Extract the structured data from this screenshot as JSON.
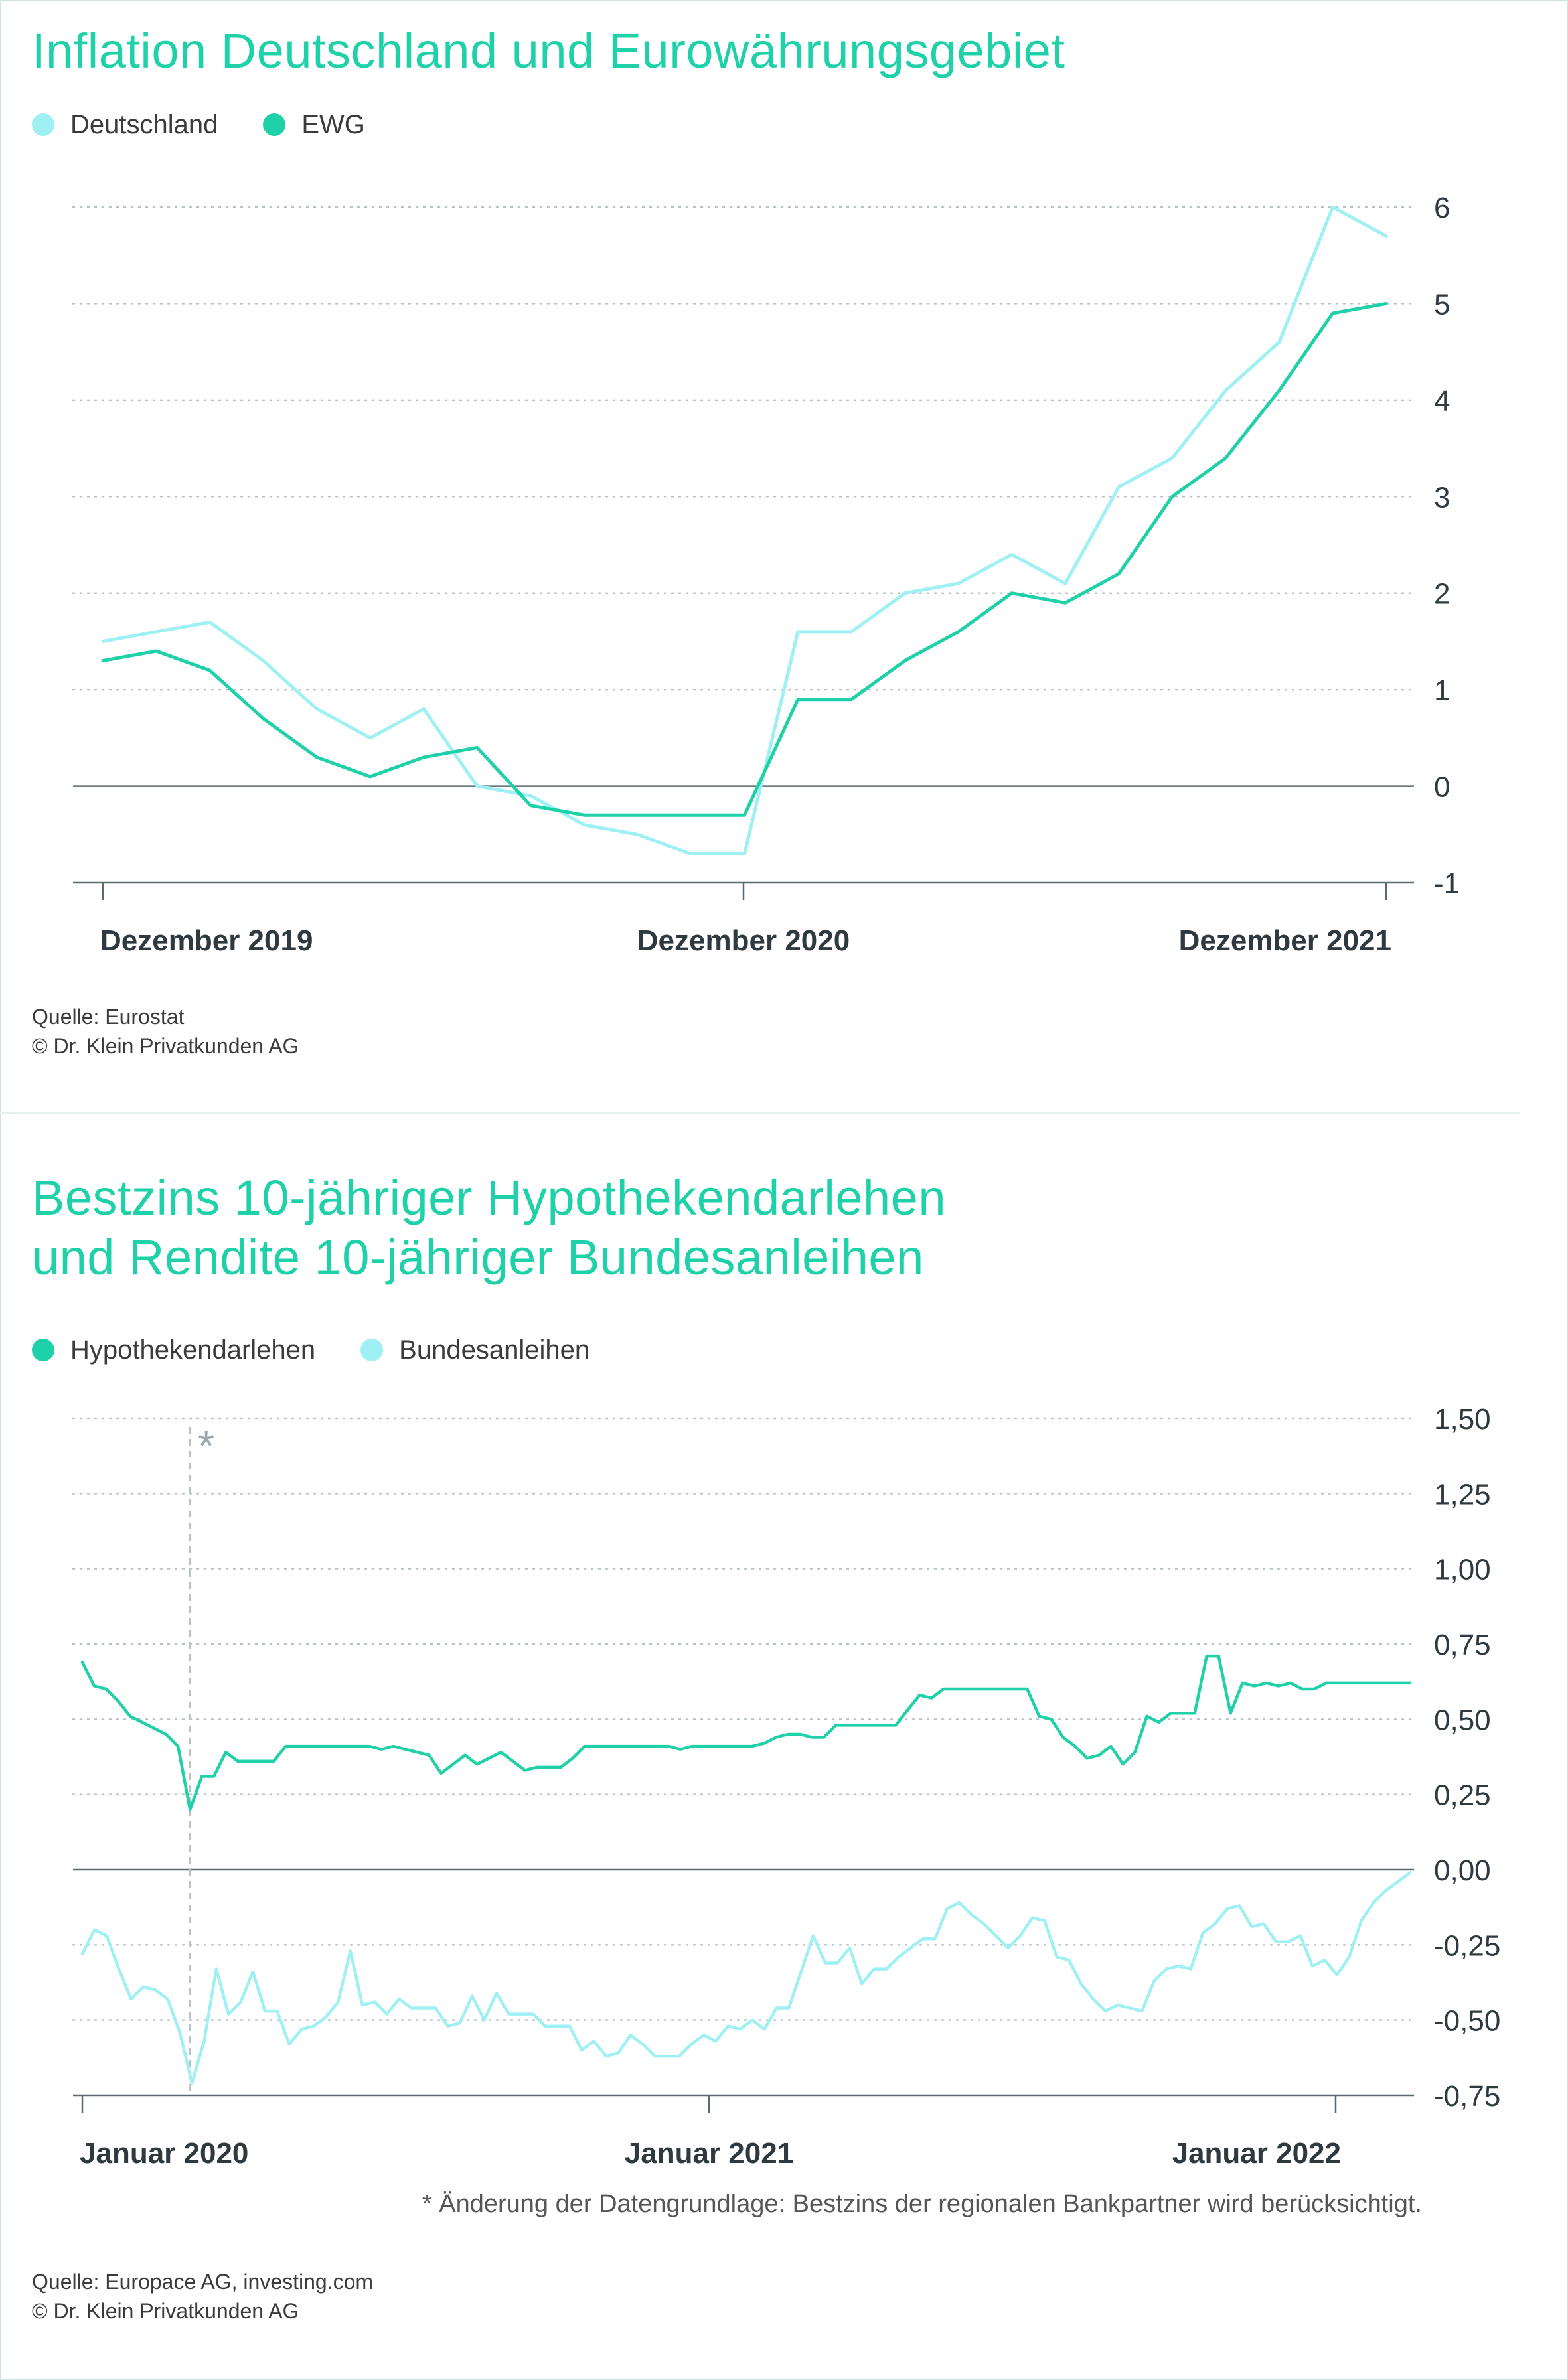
{
  "colors": {
    "primary": "#1fd1a8",
    "light": "#9ef0f3",
    "text": "#2f3a40",
    "grid": "#b9c2c5"
  },
  "chart1": {
    "title": "Inflation Deutschland und Eurowährungsgebiet",
    "legend": [
      {
        "label": "Deutschland",
        "color": "#9ef0f3"
      },
      {
        "label": "EWG",
        "color": "#1fd1a8"
      }
    ],
    "source_line1": "Quelle: Eurostat",
    "source_line2": "© Dr. Klein Privatkunden AG"
  },
  "chart2": {
    "title_line1": "Bestzins 10-jähriger Hypothekendarlehen",
    "title_line2": "und Rendite 10-jähriger Bundesanleihen",
    "legend": [
      {
        "label": "Hypothekendarlehen",
        "color": "#1fd1a8"
      },
      {
        "label": "Bundesanleihen",
        "color": "#9ef0f3"
      }
    ],
    "asterisk": "*",
    "footnote": "*  Änderung der Datengrundlage: Bestzins der regionalen Bankpartner wird berücksichtigt.",
    "source_line1": "Quelle: Europace AG, investing.com",
    "source_line2": "© Dr. Klein Privatkunden AG"
  },
  "chart_data": [
    {
      "type": "line",
      "title": "Inflation Deutschland und Eurowährungsgebiet",
      "ylim": [
        -1,
        6
      ],
      "yticks": [
        "6",
        "5",
        "4",
        "3",
        "2",
        "1",
        "0",
        "-1"
      ],
      "x_tick_labels": [
        "Dezember 2019",
        "Dezember 2020",
        "Dezember 2021"
      ],
      "x": [
        "2019-12",
        "2020-01",
        "2020-02",
        "2020-03",
        "2020-04",
        "2020-05",
        "2020-06",
        "2020-07",
        "2020-08",
        "2020-09",
        "2020-10",
        "2020-11",
        "2020-12",
        "2021-01",
        "2021-02",
        "2021-03",
        "2021-04",
        "2021-05",
        "2021-06",
        "2021-07",
        "2021-08",
        "2021-09",
        "2021-10",
        "2021-11",
        "2021-12"
      ],
      "legend_position": "top-left",
      "grid": true,
      "series": [
        {
          "name": "Deutschland",
          "color": "#9ef0f3",
          "values": [
            1.5,
            1.6,
            1.7,
            1.3,
            0.8,
            0.5,
            0.8,
            0.0,
            -0.1,
            -0.4,
            -0.5,
            -0.7,
            -0.7,
            1.6,
            1.6,
            2.0,
            2.1,
            2.4,
            2.1,
            3.1,
            3.4,
            4.1,
            4.6,
            6.0,
            5.7
          ]
        },
        {
          "name": "EWG",
          "color": "#1fd1a8",
          "values": [
            1.3,
            1.4,
            1.2,
            0.7,
            0.3,
            0.1,
            0.3,
            0.4,
            -0.2,
            -0.3,
            -0.3,
            -0.3,
            -0.3,
            0.9,
            0.9,
            1.3,
            1.6,
            2.0,
            1.9,
            2.2,
            3.0,
            3.4,
            4.1,
            4.9,
            5.0
          ]
        }
      ]
    },
    {
      "type": "line",
      "title": "Bestzins 10-jähriger Hypothekendarlehen und Rendite 10-jähriger Bundesanleihen",
      "ylim": [
        -0.75,
        1.5
      ],
      "yticks": [
        "1,50",
        "1,25",
        "1,00",
        "0,75",
        "0,50",
        "0,25",
        "0,00",
        "-0,25",
        "-0,50",
        "-0,75"
      ],
      "x_tick_labels": [
        "Januar 2020",
        "Januar 2021",
        "Januar 2022"
      ],
      "x_range": [
        "2020-01",
        "2022-03"
      ],
      "annotation": {
        "label": "*",
        "at": "2020-03"
      },
      "legend_position": "top-left",
      "grid": true,
      "series": [
        {
          "name": "Hypothekendarlehen",
          "color": "#1fd1a8",
          "values": [
            0.69,
            0.61,
            0.6,
            0.56,
            0.51,
            0.49,
            0.47,
            0.45,
            0.41,
            0.2,
            0.31,
            0.31,
            0.39,
            0.36,
            0.36,
            0.36,
            0.36,
            0.41,
            0.41,
            0.41,
            0.41,
            0.41,
            0.41,
            0.41,
            0.41,
            0.4,
            0.41,
            0.4,
            0.39,
            0.38,
            0.32,
            0.35,
            0.38,
            0.35,
            0.37,
            0.39,
            0.36,
            0.33,
            0.34,
            0.34,
            0.34,
            0.37,
            0.41,
            0.41,
            0.41,
            0.41,
            0.41,
            0.41,
            0.41,
            0.41,
            0.4,
            0.41,
            0.41,
            0.41,
            0.41,
            0.41,
            0.41,
            0.42,
            0.44,
            0.45,
            0.45,
            0.44,
            0.44,
            0.48,
            0.48,
            0.48,
            0.48,
            0.48,
            0.48,
            0.53,
            0.58,
            0.57,
            0.6,
            0.6,
            0.6,
            0.6,
            0.6,
            0.6,
            0.6,
            0.6,
            0.51,
            0.5,
            0.44,
            0.41,
            0.37,
            0.38,
            0.41,
            0.35,
            0.39,
            0.51,
            0.49,
            0.52,
            0.52,
            0.52,
            0.71,
            0.71,
            0.52,
            0.62,
            0.61,
            0.62,
            0.61,
            0.62,
            0.6,
            0.6,
            0.62,
            0.62,
            0.62,
            0.62,
            0.62,
            0.62,
            0.62,
            0.62
          ]
        },
        {
          "name": "Bundesanleihen",
          "color": "#9ef0f3",
          "values": [
            -0.28,
            -0.2,
            -0.22,
            -0.33,
            -0.43,
            -0.39,
            -0.4,
            -0.43,
            -0.54,
            -0.71,
            -0.57,
            -0.33,
            -0.48,
            -0.44,
            -0.34,
            -0.47,
            -0.47,
            -0.58,
            -0.53,
            -0.52,
            -0.49,
            -0.44,
            -0.27,
            -0.45,
            -0.44,
            -0.48,
            -0.43,
            -0.46,
            -0.46,
            -0.46,
            -0.52,
            -0.51,
            -0.42,
            -0.5,
            -0.41,
            -0.48,
            -0.48,
            -0.48,
            -0.52,
            -0.52,
            -0.52,
            -0.6,
            -0.57,
            -0.62,
            -0.61,
            -0.55,
            -0.58,
            -0.62,
            -0.62,
            -0.62,
            -0.58,
            -0.55,
            -0.57,
            -0.52,
            -0.53,
            -0.5,
            -0.53,
            -0.46,
            -0.46,
            -0.34,
            -0.22,
            -0.31,
            -0.31,
            -0.26,
            -0.38,
            -0.33,
            -0.33,
            -0.29,
            -0.26,
            -0.23,
            -0.23,
            -0.13,
            -0.11,
            -0.15,
            -0.18,
            -0.22,
            -0.26,
            -0.22,
            -0.16,
            -0.17,
            -0.29,
            -0.3,
            -0.38,
            -0.43,
            -0.47,
            -0.45,
            -0.46,
            -0.47,
            -0.37,
            -0.33,
            -0.32,
            -0.33,
            -0.21,
            -0.18,
            -0.13,
            -0.12,
            -0.19,
            -0.18,
            -0.24,
            -0.24,
            -0.22,
            -0.32,
            -0.3,
            -0.35,
            -0.29,
            -0.17,
            -0.11,
            -0.07,
            -0.04,
            -0.01
          ]
        }
      ]
    }
  ]
}
